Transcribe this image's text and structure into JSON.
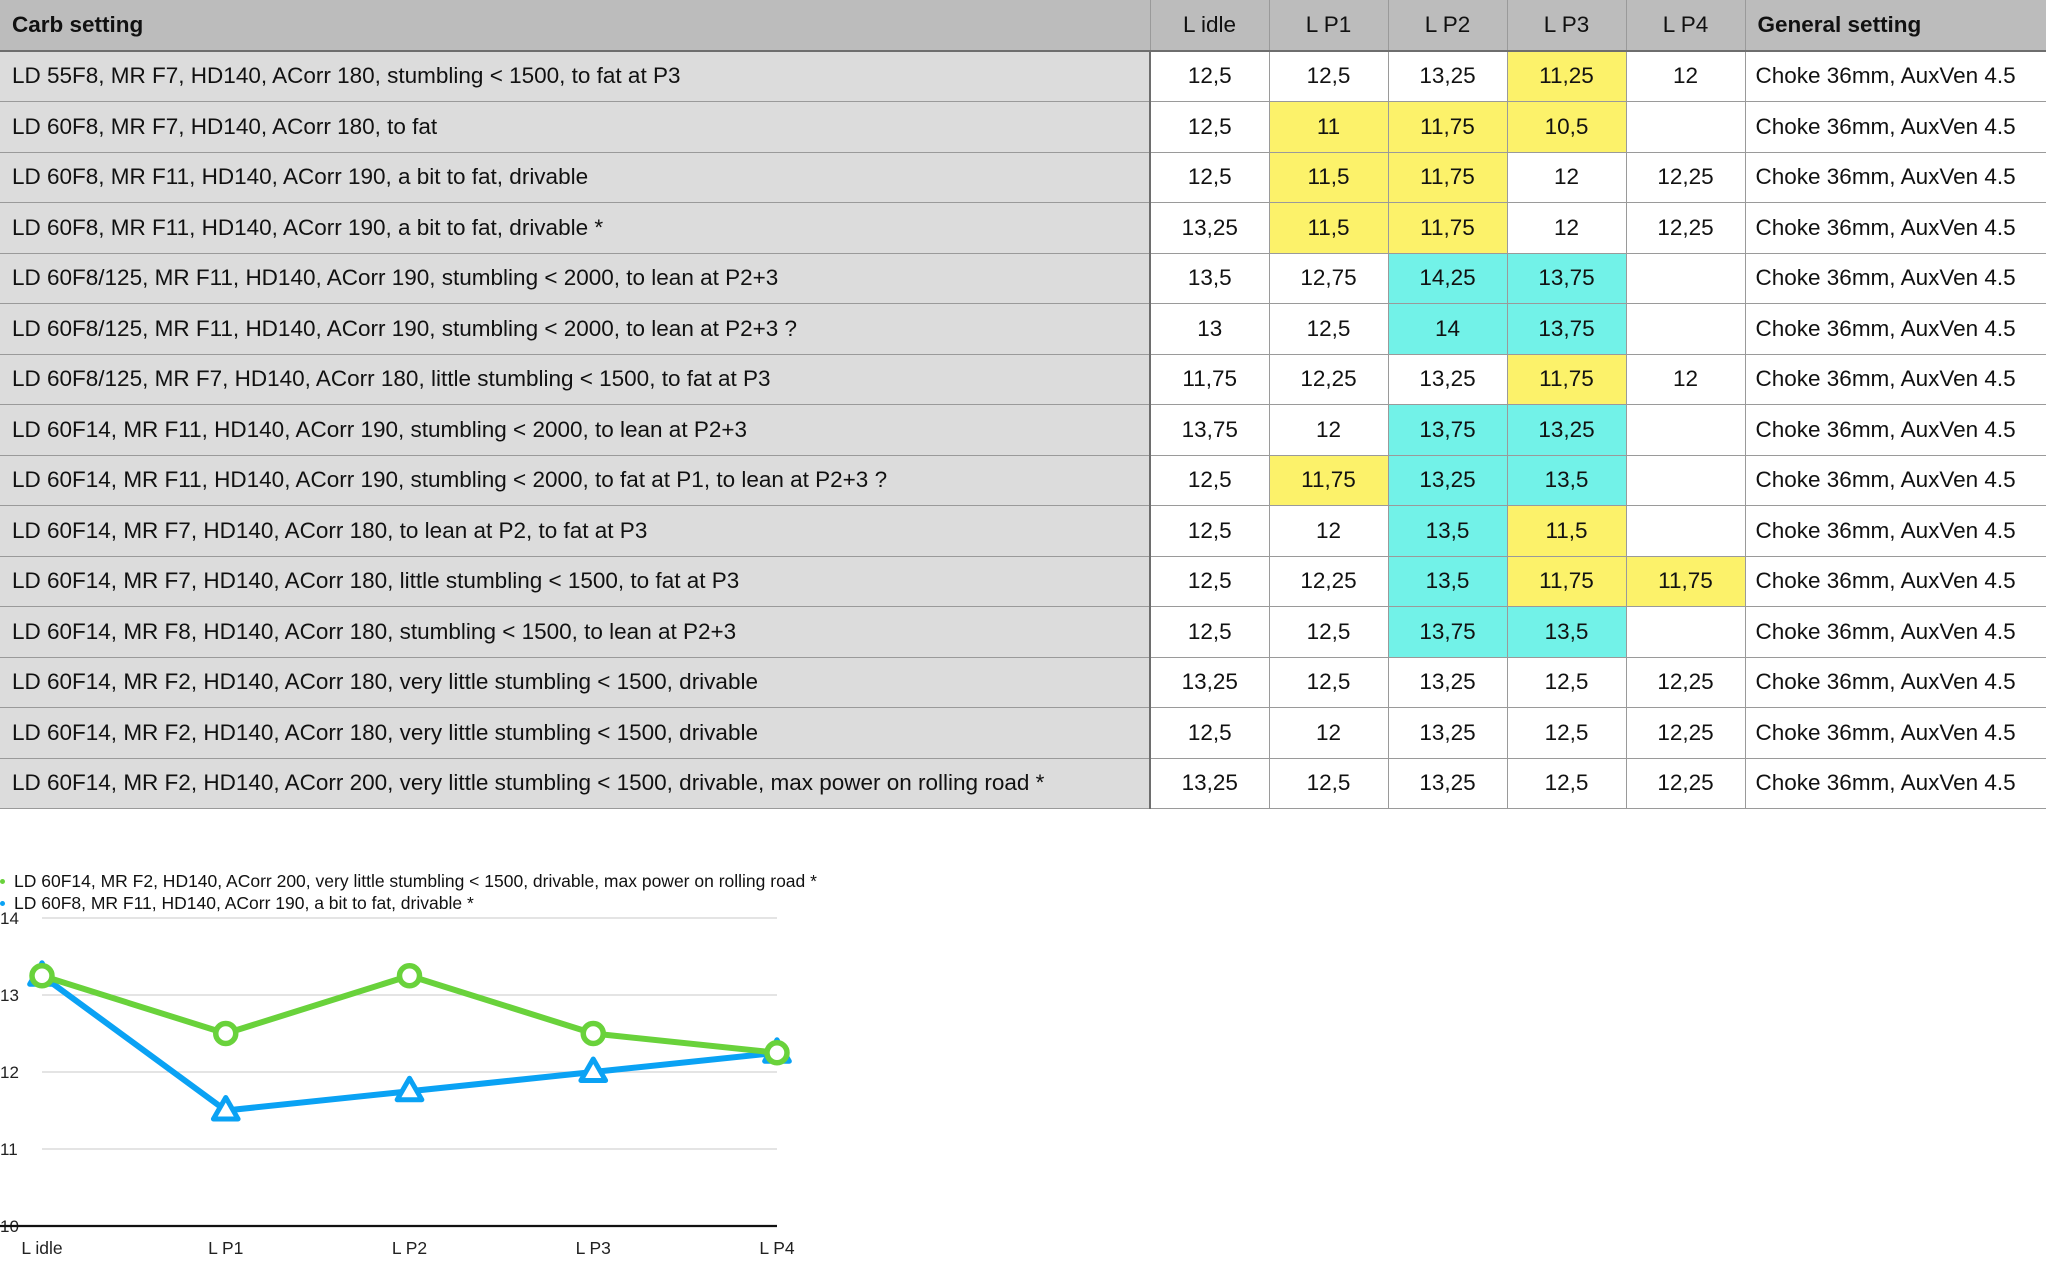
{
  "table": {
    "headers": [
      "Carb setting",
      "L idle",
      "L P1",
      "L P2",
      "L P3",
      "L P4",
      "General setting"
    ],
    "rows": [
      {
        "setting": "LD 55F8, MR F7, HD140, ACorr 180, stumbling < 1500, to fat at P3",
        "values": [
          "12,5",
          "12,5",
          "13,25",
          "11,25",
          "12"
        ],
        "general": "Choke 36mm, AuxVen 4.5"
      },
      {
        "setting": "LD 60F8, MR F7, HD140, ACorr 180, to fat",
        "values": [
          "12,5",
          "11",
          "11,75",
          "10,5",
          ""
        ],
        "general": "Choke 36mm, AuxVen 4.5"
      },
      {
        "setting": "LD 60F8, MR F11, HD140, ACorr 190, a bit to fat, drivable",
        "values": [
          "12,5",
          "11,5",
          "11,75",
          "12",
          "12,25"
        ],
        "general": "Choke 36mm, AuxVen 4.5"
      },
      {
        "setting": "LD 60F8, MR F11, HD140, ACorr 190, a bit to fat, drivable *",
        "values": [
          "13,25",
          "11,5",
          "11,75",
          "12",
          "12,25"
        ],
        "general": "Choke 36mm, AuxVen 4.5"
      },
      {
        "setting": "LD 60F8/125, MR F11, HD140, ACorr 190, stumbling < 2000, to lean at P2+3",
        "values": [
          "13,5",
          "12,75",
          "14,25",
          "13,75",
          ""
        ],
        "general": "Choke 36mm, AuxVen 4.5"
      },
      {
        "setting": "LD 60F8/125, MR F11, HD140, ACorr 190, stumbling < 2000, to lean at P2+3 ?",
        "values": [
          "13",
          "12,5",
          "14",
          "13,75",
          ""
        ],
        "general": "Choke 36mm, AuxVen 4.5"
      },
      {
        "setting": "LD 60F8/125, MR F7, HD140, ACorr 180, little stumbling < 1500, to fat at P3",
        "values": [
          "11,75",
          "12,25",
          "13,25",
          "11,75",
          "12"
        ],
        "general": "Choke 36mm, AuxVen 4.5"
      },
      {
        "setting": "LD 60F14, MR F11, HD140, ACorr 190, stumbling < 2000, to lean at P2+3",
        "values": [
          "13,75",
          "12",
          "13,75",
          "13,25",
          ""
        ],
        "general": "Choke 36mm, AuxVen 4.5"
      },
      {
        "setting": "LD 60F14, MR F11, HD140, ACorr 190, stumbling < 2000, to fat at P1, to lean at P2+3 ?",
        "values": [
          "12,5",
          "11,75",
          "13,25",
          "13,5",
          ""
        ],
        "general": "Choke 36mm, AuxVen 4.5"
      },
      {
        "setting": "LD 60F14, MR F7, HD140, ACorr 180, to lean at P2, to fat at P3",
        "values": [
          "12,5",
          "12",
          "13,5",
          "11,5",
          ""
        ],
        "general": "Choke 36mm, AuxVen 4.5"
      },
      {
        "setting": "LD 60F14, MR F7, HD140, ACorr 180, little stumbling < 1500, to fat at P3",
        "values": [
          "12,5",
          "12,25",
          "13,5",
          "11,75",
          "11,75"
        ],
        "general": "Choke 36mm, AuxVen 4.5"
      },
      {
        "setting": "LD 60F14, MR F8, HD140, ACorr 180, stumbling < 1500, to lean at P2+3",
        "values": [
          "12,5",
          "12,5",
          "13,75",
          "13,5",
          ""
        ],
        "general": "Choke 36mm, AuxVen 4.5"
      },
      {
        "setting": "LD 60F14, MR F2, HD140, ACorr 180, very little stumbling < 1500, drivable",
        "values": [
          "13,25",
          "12,5",
          "13,25",
          "12,5",
          "12,25"
        ],
        "general": "Choke 36mm, AuxVen 4.5"
      },
      {
        "setting": "LD 60F14, MR F2, HD140, ACorr 180, very little stumbling < 1500, drivable",
        "values": [
          "12,5",
          "12",
          "13,25",
          "12,5",
          "12,25"
        ],
        "general": "Choke 36mm, AuxVen 4.5"
      },
      {
        "setting": "LD 60F14, MR F2, HD140, ACorr 200, very little stumbling < 1500, drivable, max power on rolling road *",
        "values": [
          "13,25",
          "12,5",
          "13,25",
          "12,5",
          "12,25"
        ],
        "general": "Choke 36mm, AuxVen 4.5"
      }
    ],
    "cell_highlights": [
      [
        null,
        null,
        null,
        "yellow",
        null
      ],
      [
        null,
        "yellow",
        "yellow",
        "yellow",
        null
      ],
      [
        null,
        "yellow",
        "yellow",
        null,
        null
      ],
      [
        null,
        "yellow",
        "yellow",
        null,
        null
      ],
      [
        null,
        null,
        "cyan",
        "cyan",
        null
      ],
      [
        null,
        null,
        "cyan",
        "cyan",
        null
      ],
      [
        null,
        null,
        null,
        "yellow",
        null
      ],
      [
        null,
        null,
        "cyan",
        "cyan",
        null
      ],
      [
        null,
        "yellow",
        "cyan",
        "cyan",
        null
      ],
      [
        null,
        null,
        "cyan",
        "yellow",
        null
      ],
      [
        null,
        null,
        "cyan",
        "yellow",
        "yellow"
      ],
      [
        null,
        null,
        "cyan",
        "cyan",
        null
      ],
      [
        null,
        null,
        null,
        null,
        null
      ],
      [
        null,
        null,
        null,
        null,
        null
      ],
      [
        null,
        null,
        null,
        null,
        null
      ]
    ],
    "row_highlights": [
      null,
      null,
      null,
      "blue",
      null,
      null,
      null,
      null,
      null,
      null,
      null,
      null,
      null,
      null,
      "green"
    ],
    "colors": {
      "yellow": "#fcf26a",
      "cyan": "#72f2e8",
      "blue": "#0aa2f4",
      "green": "#86f746",
      "header": "#bcbcbc",
      "setting_bg": "#dcdcdc"
    }
  },
  "chart_data": {
    "type": "line",
    "categories": [
      "L idle",
      "L P1",
      "L P2",
      "L P3",
      "L P4"
    ],
    "ylim": [
      10,
      14
    ],
    "yticks": [
      10,
      11,
      12,
      13,
      14
    ],
    "grid": true,
    "legend_position": "top-left",
    "series": [
      {
        "name": "LD 60F14, MR F2, HD140, ACorr 200, very little stumbling < 1500, drivable, max power on rolling road *",
        "values": [
          13.25,
          12.5,
          13.25,
          12.5,
          12.25
        ],
        "color": "#69d23b",
        "marker": "circle"
      },
      {
        "name": "LD 60F8, MR F11, HD140, ACorr 190, a bit to fat, drivable *",
        "values": [
          13.25,
          11.5,
          11.75,
          12,
          12.25
        ],
        "color": "#0aa2f4",
        "marker": "triangle"
      }
    ]
  }
}
